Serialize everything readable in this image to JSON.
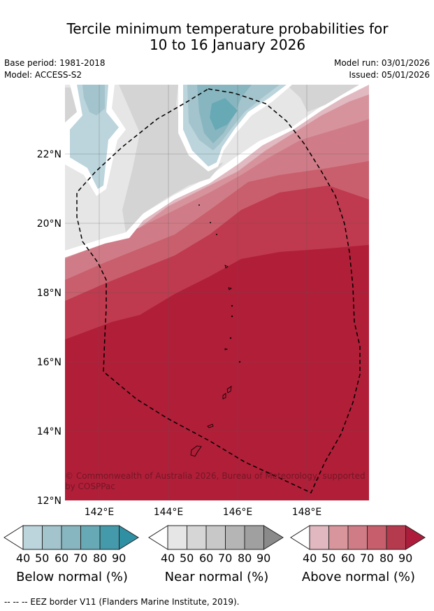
{
  "title": {
    "line1": "Tercile minimum temperature probabilities for",
    "line2": "10 to 16 January 2026"
  },
  "meta": {
    "base_period": "Base period: 1981-2018",
    "model": "Model: ACCESS-S2",
    "model_run": "Model run: 03/01/2026",
    "issued": "Issued: 05/01/2026"
  },
  "map": {
    "lat_labels": [
      "22°N",
      "20°N",
      "18°N",
      "16°N",
      "14°N",
      "12°N"
    ],
    "lon_labels": [
      "142°E",
      "144°E",
      "146°E",
      "148°E"
    ],
    "copyright_line1": "© Commonwealth of Australia 2026, Bureau of Meteorology, supported",
    "copyright_line2": "by COSPPac"
  },
  "legends": [
    {
      "title": "Below normal (%)",
      "ticks": [
        "40",
        "50",
        "60",
        "70",
        "80",
        "90"
      ],
      "colors": [
        "#bcd4dc",
        "#a3c4cc",
        "#88b6c0",
        "#68a9b6",
        "#4499aa",
        "#2f8fa3"
      ]
    },
    {
      "title": "Near normal (%)",
      "ticks": [
        "40",
        "50",
        "60",
        "70",
        "80",
        "90"
      ],
      "colors": [
        "#e6e6e6",
        "#d6d6d6",
        "#c8c8c8",
        "#b5b5b5",
        "#a0a0a0",
        "#8a8a8a"
      ]
    },
    {
      "title": "Above normal (%)",
      "ticks": [
        "40",
        "50",
        "60",
        "70",
        "80",
        "90"
      ],
      "colors": [
        "#e1b8c0",
        "#d8959c",
        "#d07c86",
        "#c75e6c",
        "#b63a4e",
        "#ad1d3b"
      ]
    }
  ],
  "footer": "--  --  -- EEZ border V11 (Flanders Marine Institute, 2019)."
}
